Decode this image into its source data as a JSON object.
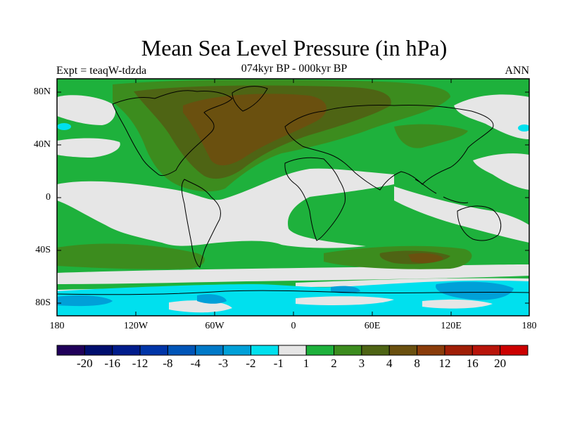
{
  "title": "Mean Sea Level Pressure (in hPa)",
  "subtitle": "074kyr BP - 000kyr BP",
  "experiment": "Expt = teaqW-tdzda",
  "season": "ANN",
  "y_axis_labels": [
    "80N",
    "40N",
    "0",
    "40S",
    "80S"
  ],
  "x_axis_labels": [
    "180",
    "120W",
    "60W",
    "0",
    "60E",
    "120E",
    "180"
  ],
  "colorbar": {
    "colors": [
      "#20005a",
      "#000e6e",
      "#001c8c",
      "#0035a8",
      "#0055b8",
      "#0079c8",
      "#00a0d8",
      "#00e0ee",
      "#e6e6e6",
      "#1eb13c",
      "#3c8c1e",
      "#4e6414",
      "#6a500f",
      "#8a3c0a",
      "#a01e06",
      "#b8140a",
      "#cc0000"
    ],
    "labels": [
      "-20",
      "-16",
      "-12",
      "-8",
      "-4",
      "-3",
      "-2",
      "-1",
      "1",
      "2",
      "3",
      "4",
      "8",
      "12",
      "16",
      "20"
    ]
  }
}
